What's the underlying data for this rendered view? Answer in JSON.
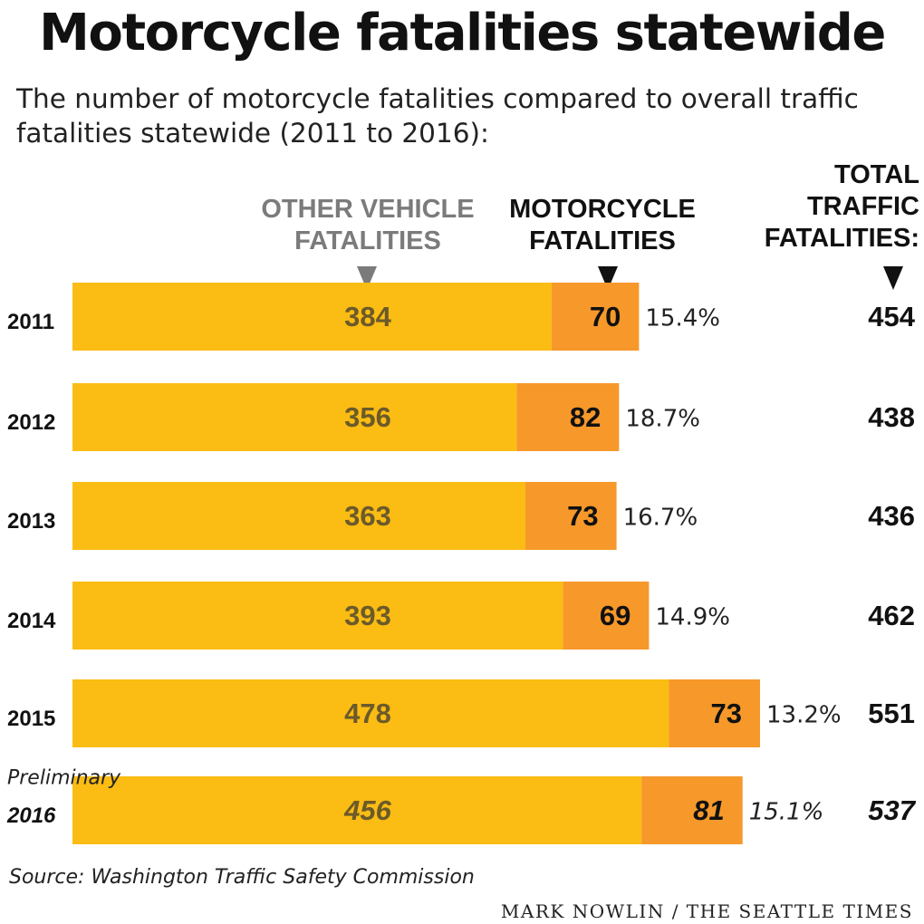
{
  "title": "Motorcycle fatalities statewide",
  "subtitle": "The number of motorcycle fatalities compared to overall traffic fatalities statewide (2011 to 2016):",
  "headers": {
    "other": "OTHER VEHICLE FATALITIES",
    "moto": "MOTORCYCLE FATALITIES",
    "total": "TOTAL TRAFFIC FATALITIES:"
  },
  "colors": {
    "other": "#fbbc13",
    "moto": "#f6982a",
    "other_label": "#6b5a2a",
    "moto_label": "#111111"
  },
  "chart_data": {
    "type": "bar",
    "orientation": "horizontal",
    "stacked": true,
    "categories": [
      "2011",
      "2012",
      "2013",
      "2014",
      "2015",
      "2016"
    ],
    "category_notes": [
      "",
      "",
      "",
      "",
      "",
      "Preliminary"
    ],
    "series": [
      {
        "name": "OTHER VEHICLE FATALITIES",
        "values": [
          384,
          356,
          363,
          393,
          478,
          456
        ]
      },
      {
        "name": "MOTORCYCLE FATALITIES",
        "values": [
          70,
          82,
          73,
          69,
          73,
          81
        ]
      }
    ],
    "percent_labels": [
      "15.4%",
      "18.7%",
      "16.7%",
      "14.9%",
      "13.2%",
      "15.1%"
    ],
    "totals": [
      454,
      438,
      436,
      462,
      551,
      537
    ],
    "italic_rows": [
      false,
      false,
      false,
      false,
      false,
      true
    ],
    "legend": "column headers above bars"
  },
  "source": "Source: Washington Traffic Safety Commission",
  "credit": "MARK NOWLIN / THE SEATTLE TIMES"
}
